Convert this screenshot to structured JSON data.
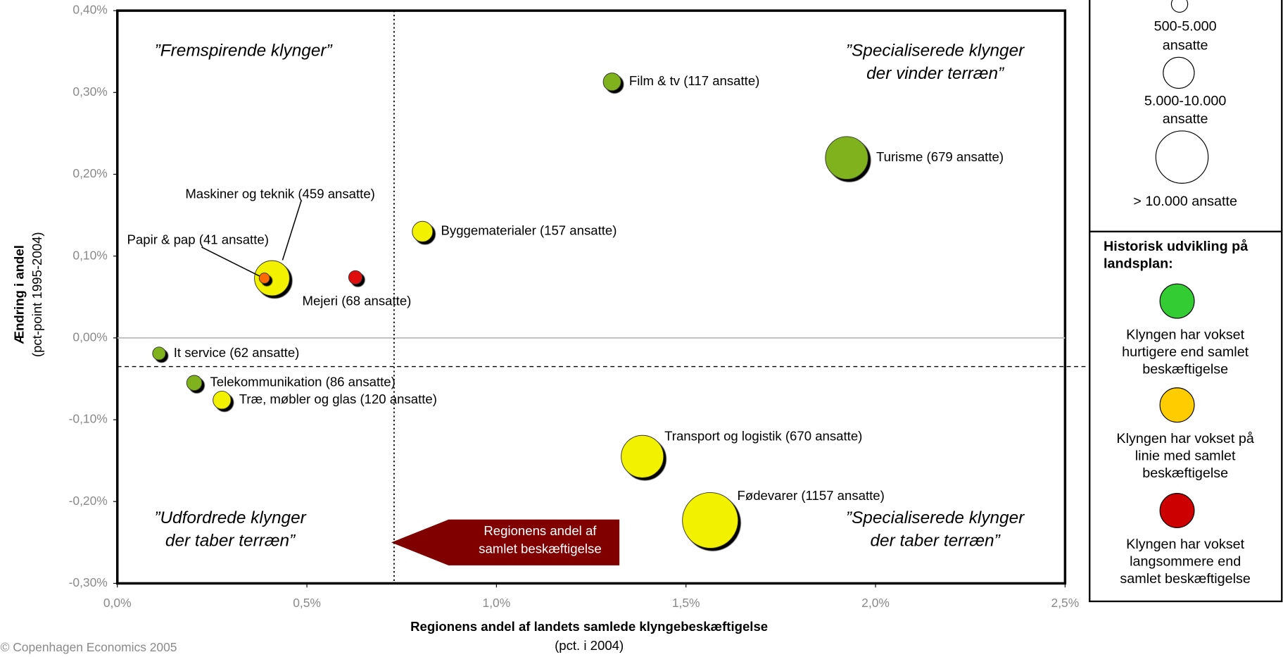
{
  "chart_data": {
    "type": "scatter",
    "xlabel": "Regionens andel af landets samlede klyngebeskæftigelse",
    "xlabel_sub": "(pct. i 2004)",
    "ylabel": "Ændring i andel",
    "ylabel_sub": "(pct-point 1995-2004)",
    "xlim": [
      0,
      2.5
    ],
    "ylim": [
      -0.3,
      0.4
    ],
    "xticks": [
      {
        "value": 0,
        "label": "0,0%"
      },
      {
        "value": 0.5,
        "label": "0,5%"
      },
      {
        "value": 1,
        "label": "1,0%"
      },
      {
        "value": 1.5,
        "label": "1,5%"
      },
      {
        "value": 2,
        "label": "2,0%"
      },
      {
        "value": 2.5,
        "label": "2,5%"
      }
    ],
    "yticks": [
      {
        "value": -0.3,
        "label": "-0,30%"
      },
      {
        "value": -0.2,
        "label": "-0,20%"
      },
      {
        "value": -0.1,
        "label": "-0,10%"
      },
      {
        "value": 0,
        "label": "0,00%"
      },
      {
        "value": 0.1,
        "label": "0,10%"
      },
      {
        "value": 0.2,
        "label": "0,20%"
      },
      {
        "value": 0.3,
        "label": "0,30%"
      },
      {
        "value": 0.4,
        "label": "0,40%"
      }
    ],
    "labels": [
      "Film & tv (117 ansatte)",
      "Turisme (679 ansatte)",
      "Byggematerialer (157 ansatte)",
      "Maskiner og teknik (459 ansatte)",
      "Papir & pap (41 ansatte)",
      "Mejeri (68 ansatte)",
      "It service (62 ansatte)",
      "Telekommunikation (86 ansatte)",
      "Træ, møbler og glas (120 ansatte)",
      "Transport og logistik (670 ansatte)",
      "Fødevarer (1157 ansatte)"
    ],
    "x": [
      1.305,
      1.924,
      0.805,
      0.408,
      0.388,
      0.628,
      0.11,
      0.203,
      0.276,
      1.385,
      1.564
    ],
    "values": [
      0.313,
      0.22,
      0.13,
      0.073,
      0.073,
      0.074,
      -0.019,
      -0.055,
      -0.076,
      -0.145,
      -0.223
    ],
    "sizes": [
      117,
      679,
      157,
      459,
      41,
      68,
      62,
      86,
      120,
      670,
      1157
    ],
    "colors": [
      "#7fb21a",
      "#7fb21a",
      "#f2f200",
      "#f2f200",
      "#ff6a00",
      "#e01010",
      "#7fb21a",
      "#7fb21a",
      "#f2f200",
      "#f2f200",
      "#f2f200"
    ],
    "reference_lines": {
      "x": 0.73,
      "y": -0.035
    },
    "quadrant_labels": [
      [
        "”Fremspirende klynger”"
      ],
      [
        "”Specialiserede klynger",
        "der vinder terræn”"
      ],
      [
        "”Udfordrede klynger",
        "der taber terræn”"
      ],
      [
        "”Specialiserede klynger",
        "der taber terræn”"
      ]
    ],
    "arrow_label": [
      "Regionens andel af",
      "samlet beskæftigelse"
    ],
    "size_legend": [
      [
        "500-5.000",
        "ansatte"
      ],
      [
        "5.000-10.000",
        "ansatte"
      ],
      [
        "> 10.000 ansatte"
      ]
    ],
    "color_legend_title": [
      "Historisk udvikling på",
      "landsplan:"
    ],
    "color_legend": [
      {
        "color": "#33cc33",
        "label": [
          "Klyngen har vokset",
          "hurtigere end samlet",
          "beskæftigelse"
        ]
      },
      {
        "color": "#ffcc00",
        "label": [
          "Klyngen har vokset på",
          "linie med samlet",
          "beskæftigelse"
        ]
      },
      {
        "color": "#cc0000",
        "label": [
          "Klyngen har vokset",
          "langsommere end",
          "samlet beskæftigelse"
        ]
      }
    ],
    "source": "© Copenhagen Economics 2005"
  }
}
